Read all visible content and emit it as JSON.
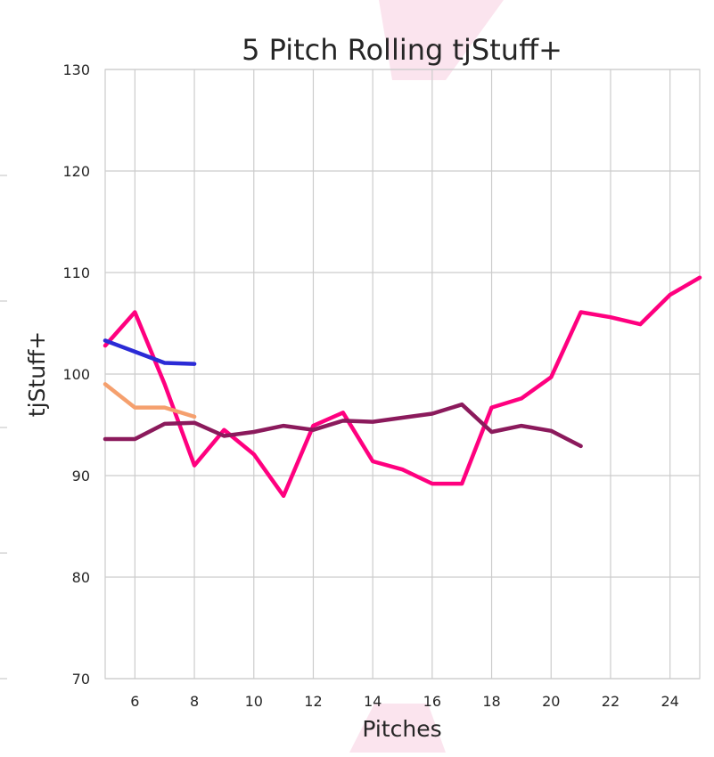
{
  "chart_data": {
    "type": "line",
    "title": "5 Pitch Rolling tjStuff+",
    "xlabel": "Pitches",
    "ylabel": "tjStuff+",
    "xlim": [
      5,
      25
    ],
    "ylim": [
      70,
      130
    ],
    "xticks": [
      6,
      8,
      10,
      12,
      14,
      16,
      18,
      20,
      22,
      24
    ],
    "yticks": [
      70,
      80,
      90,
      100,
      110,
      120,
      130
    ],
    "grid": true,
    "series": [
      {
        "color": "#ff007f",
        "x": [
          5,
          6,
          7,
          8,
          9,
          10,
          11,
          12,
          13,
          14,
          15,
          16,
          17,
          18,
          19,
          20,
          21,
          22,
          23,
          24,
          25
        ],
        "values": [
          102.8,
          106.1,
          99.0,
          91.0,
          94.5,
          92.1,
          88.0,
          94.9,
          96.2,
          91.4,
          90.6,
          89.2,
          89.2,
          96.7,
          97.6,
          99.7,
          106.1,
          105.6,
          104.9,
          107.8,
          109.5
        ]
      },
      {
        "color": "#2b2bd6",
        "x": [
          5,
          6,
          7,
          8
        ],
        "values": [
          103.3,
          102.2,
          101.1,
          101.0
        ]
      },
      {
        "color": "#f5a06e",
        "x": [
          5,
          6,
          7,
          8
        ],
        "values": [
          99.0,
          96.7,
          96.7,
          95.8
        ]
      },
      {
        "color": "#8b1a5c",
        "x": [
          5,
          6,
          7,
          8,
          9,
          10,
          11,
          12,
          13,
          14,
          15,
          16,
          17,
          18,
          19,
          20,
          21
        ],
        "values": [
          93.6,
          93.6,
          95.1,
          95.2,
          93.9,
          94.3,
          94.9,
          94.5,
          95.4,
          95.3,
          95.7,
          96.1,
          97.0,
          94.3,
          94.9,
          94.4,
          92.9
        ]
      }
    ]
  }
}
